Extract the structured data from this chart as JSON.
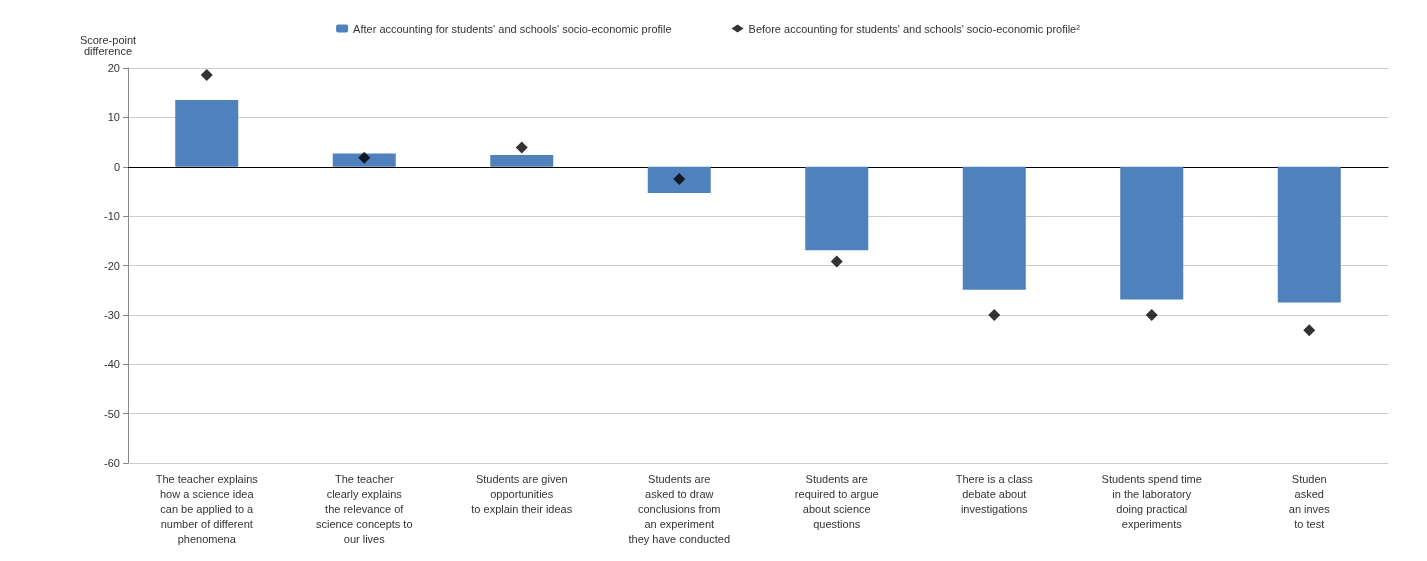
{
  "chart_data": {
    "type": "bar",
    "ylabel": "Score-point\ndifference",
    "categories": [
      "The teacher explains\nhow a science idea\ncan be applied to a\nnumber of different\nphenomena",
      "The teacher\nclearly explains\nthe relevance of\nscience concepts to\nour lives",
      "Students are given\nopportunities\nto explain their ideas",
      "Students are\nasked to draw\nconclusions from\nan experiment\nthey have conducted",
      "Students are\nrequired to argue\nabout science\nquestions",
      "There is a class\ndebate about\ninvestigations",
      "Students spend time\nin the laboratory\ndoing practical\nexperiments",
      "Studen\nasked\nan inves\nto test"
    ],
    "series": [
      {
        "name": "After accounting for students' and schools' socio-economic profile",
        "color": "#4f81bd",
        "values": [
          13.5,
          2.7,
          2.4,
          -5.3,
          -16.9,
          -24.9,
          -26.9,
          -27.5
        ]
      },
      {
        "name": "Before accounting for students' and schools' socio-economic profile²",
        "type": "scatter",
        "marker": "diamond",
        "color": "#000000",
        "values": [
          18.6,
          1.8,
          3.9,
          -2.5,
          -19.2,
          -30,
          -30,
          -33.1
        ]
      }
    ],
    "ylim": [
      -60,
      20
    ],
    "yticks": [
      -60,
      -50,
      -40,
      -30,
      -20,
      -10,
      0,
      10,
      20
    ],
    "grid": "y",
    "legend": "top"
  }
}
